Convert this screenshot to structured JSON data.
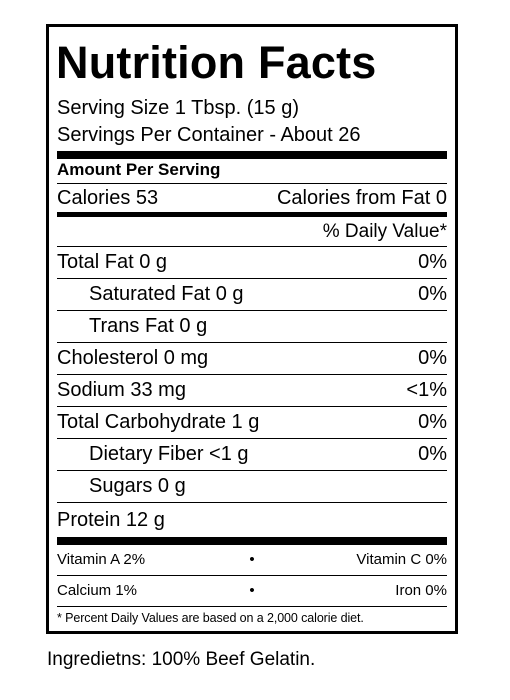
{
  "label": {
    "title": "Nutrition Facts",
    "serving_size": "Serving Size 1 Tbsp. (15 g)",
    "servings_per_container": "Servings Per Container - About 26",
    "amount_per_serving": "Amount Per Serving",
    "calories": "Calories 53",
    "calories_from_fat": "Calories from Fat 0",
    "daily_value_header": "% Daily Value*",
    "nutrients": [
      {
        "name": "Total Fat 0 g",
        "dv": "0%"
      },
      {
        "name": "Saturated Fat 0 g",
        "dv": "0%"
      },
      {
        "name": "Trans Fat 0 g",
        "dv": ""
      },
      {
        "name": "Cholesterol 0 mg",
        "dv": "0%"
      },
      {
        "name": "Sodium 33 mg",
        "dv": "<1%"
      },
      {
        "name": "Total Carbohydrate 1 g",
        "dv": "0%"
      },
      {
        "name": "Dietary Fiber <1 g",
        "dv": "0%"
      },
      {
        "name": "Sugars 0 g",
        "dv": ""
      },
      {
        "name": "Protein 12 g",
        "dv": ""
      }
    ],
    "vitamins": [
      {
        "left": "Vitamin A 2%",
        "sep": "•",
        "right": "Vitamin C 0%"
      },
      {
        "left": "Calcium 1%",
        "sep": "•",
        "right": "Iron 0%"
      }
    ],
    "footnote": "* Percent Daily Values are based on a 2,000 calorie diet."
  },
  "ingredients": "Ingredietns: 100% Beef Gelatin."
}
